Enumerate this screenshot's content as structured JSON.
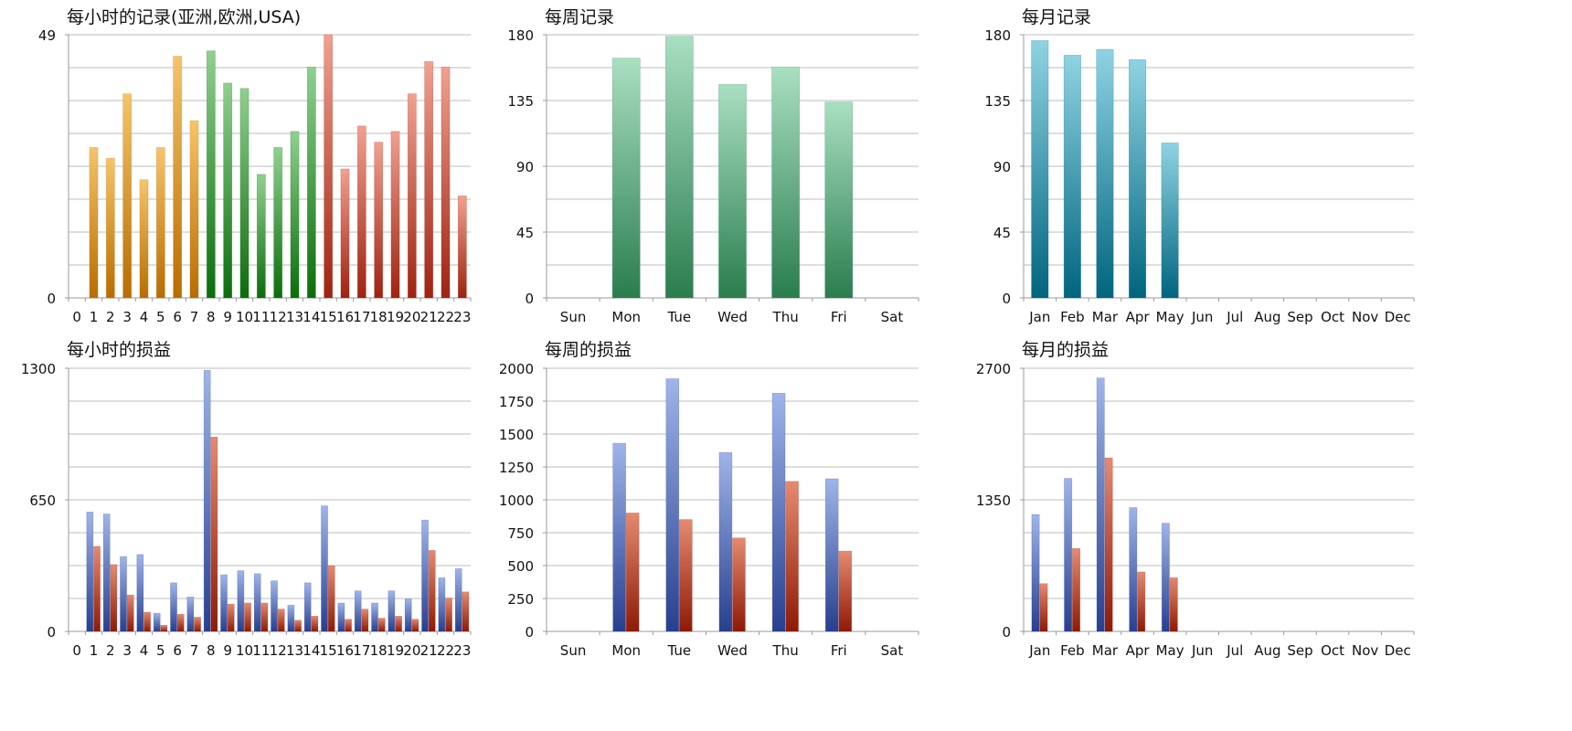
{
  "colors": {
    "hourly_orange": [
      "#f5c46a",
      "#b86d00"
    ],
    "hourly_green": [
      "#8fd08f",
      "#0c6d0c"
    ],
    "hourly_red": [
      "#f1a090",
      "#9e2310"
    ],
    "weekly_green": [
      "#a9dfc1",
      "#2a7d4f"
    ],
    "monthly_teal": [
      "#8fd3e3",
      "#00657e"
    ],
    "pnl_blue": [
      "#9fb4ea",
      "#273f8f"
    ],
    "pnl_red": [
      "#e58a70",
      "#8e1a06"
    ],
    "grid": "#bdbdbd"
  },
  "chart_data": [
    {
      "type": "bar",
      "title": "每小时的记录(亚洲,欧洲,USA)",
      "categories": [
        "0",
        "1",
        "2",
        "3",
        "4",
        "5",
        "6",
        "7",
        "8",
        "9",
        "10",
        "11",
        "12",
        "13",
        "14",
        "15",
        "16",
        "17",
        "18",
        "19",
        "20",
        "21",
        "22",
        "23"
      ],
      "series": [
        {
          "values": [
            0,
            28,
            26,
            38,
            22,
            28,
            45,
            33,
            46,
            40,
            39,
            23,
            28,
            31,
            43,
            49,
            24,
            32,
            29,
            31,
            38,
            44,
            43,
            19
          ]
        }
      ],
      "ylim": [
        0,
        49
      ],
      "yticks": [
        "0",
        "49"
      ],
      "grid": true,
      "bar_colors": [
        "hourly_orange",
        "hourly_orange",
        "hourly_orange",
        "hourly_orange",
        "hourly_orange",
        "hourly_orange",
        "hourly_orange",
        "hourly_orange",
        "hourly_green",
        "hourly_green",
        "hourly_green",
        "hourly_green",
        "hourly_green",
        "hourly_green",
        "hourly_green",
        "hourly_red",
        "hourly_red",
        "hourly_red",
        "hourly_red",
        "hourly_red",
        "hourly_red",
        "hourly_red",
        "hourly_red",
        "hourly_red"
      ]
    },
    {
      "type": "bar",
      "title": "每周记录",
      "categories": [
        "Sun",
        "Mon",
        "Tue",
        "Wed",
        "Thu",
        "Fri",
        "Sat"
      ],
      "series": [
        {
          "values": [
            0,
            164,
            179,
            146,
            158,
            134,
            0
          ]
        }
      ],
      "ylim": [
        0,
        180
      ],
      "yticks": [
        "0",
        "45",
        "90",
        "135",
        "180"
      ],
      "grid": true,
      "series_colors": [
        "weekly_green"
      ]
    },
    {
      "type": "bar",
      "title": "每月记录",
      "categories": [
        "Jan",
        "Feb",
        "Mar",
        "Apr",
        "May",
        "Jun",
        "Jul",
        "Aug",
        "Sep",
        "Oct",
        "Nov",
        "Dec"
      ],
      "series": [
        {
          "values": [
            176,
            166,
            170,
            163,
            106,
            0,
            0,
            0,
            0,
            0,
            0,
            0
          ]
        }
      ],
      "ylim": [
        0,
        180
      ],
      "yticks": [
        "0",
        "45",
        "90",
        "135",
        "180"
      ],
      "grid": true,
      "series_colors": [
        "monthly_teal"
      ]
    },
    {
      "type": "bar",
      "title": "每小时的损益",
      "categories": [
        "0",
        "1",
        "2",
        "3",
        "4",
        "5",
        "6",
        "7",
        "8",
        "9",
        "10",
        "11",
        "12",
        "13",
        "14",
        "15",
        "16",
        "17",
        "18",
        "19",
        "20",
        "21",
        "22",
        "23"
      ],
      "series": [
        {
          "values": [
            0,
            590,
            580,
            370,
            380,
            90,
            240,
            170,
            1290,
            280,
            300,
            285,
            250,
            130,
            240,
            620,
            140,
            200,
            140,
            200,
            160,
            550,
            265,
            310
          ]
        },
        {
          "values": [
            0,
            420,
            330,
            180,
            95,
            30,
            85,
            70,
            960,
            135,
            140,
            140,
            110,
            55,
            75,
            325,
            60,
            110,
            65,
            75,
            60,
            400,
            165,
            195
          ]
        }
      ],
      "ylim": [
        0,
        1300
      ],
      "yticks": [
        "0",
        "650",
        "1300"
      ],
      "grid": true,
      "series_colors": [
        "pnl_blue",
        "pnl_red"
      ]
    },
    {
      "type": "bar",
      "title": "每周的损益",
      "categories": [
        "Sun",
        "Mon",
        "Tue",
        "Wed",
        "Thu",
        "Fri",
        "Sat"
      ],
      "series": [
        {
          "values": [
            0,
            1430,
            1920,
            1360,
            1810,
            1160,
            0
          ]
        },
        {
          "values": [
            0,
            900,
            850,
            710,
            1140,
            610,
            0
          ]
        }
      ],
      "ylim": [
        0,
        2000
      ],
      "yticks": [
        "0",
        "250",
        "500",
        "750",
        "1000",
        "1250",
        "1500",
        "1750",
        "2000"
      ],
      "grid": true,
      "series_colors": [
        "pnl_blue",
        "pnl_red"
      ]
    },
    {
      "type": "bar",
      "title": "每月的损益",
      "categories": [
        "Jan",
        "Feb",
        "Mar",
        "Apr",
        "May",
        "Jun",
        "Jul",
        "Aug",
        "Sep",
        "Oct",
        "Nov",
        "Dec"
      ],
      "series": [
        {
          "values": [
            1200,
            1570,
            2600,
            1270,
            1110,
            0,
            0,
            0,
            0,
            0,
            0,
            0
          ]
        },
        {
          "values": [
            490,
            850,
            1780,
            610,
            550,
            0,
            0,
            0,
            0,
            0,
            0,
            0
          ]
        }
      ],
      "ylim": [
        0,
        2700
      ],
      "yticks": [
        "0",
        "1350",
        "2700"
      ],
      "grid": true,
      "series_colors": [
        "pnl_blue",
        "pnl_red"
      ]
    }
  ]
}
